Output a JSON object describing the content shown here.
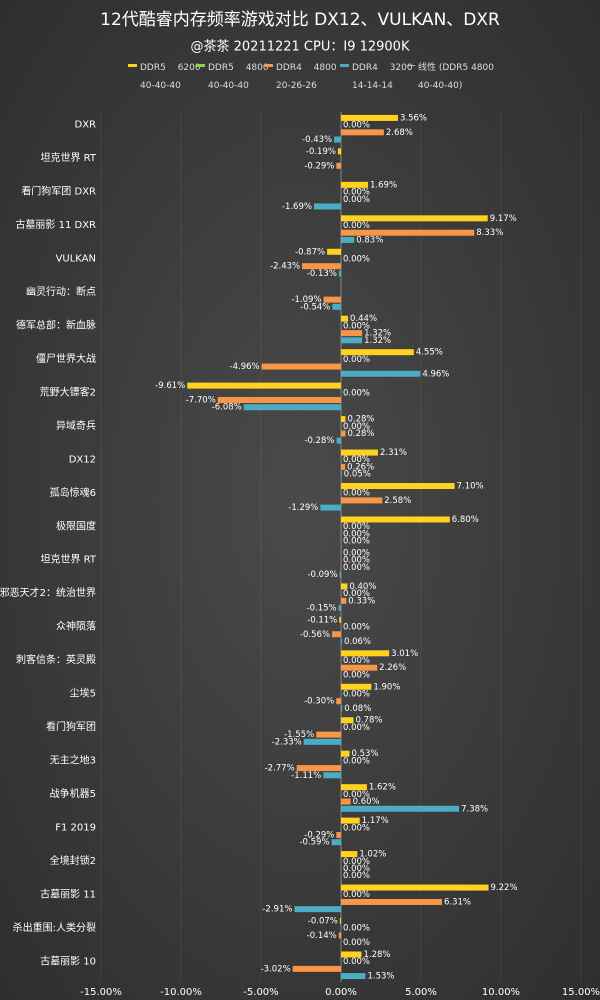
{
  "chart_data": {
    "type": "hbar",
    "title": "12代酷睿内存频率游戏对比 DX12、VULKAN、DXR",
    "subtitle": "@茶茶 20211221 CPU：I9 12900K",
    "trendline_label": "线性 (DDR5 4800 40-40-40)",
    "categories": [
      "DXR",
      "坦克世界 RT",
      "看门狗军团 DXR",
      "古墓丽影 11 DXR",
      "VULKAN",
      "幽灵行动：断点",
      "德军总部：新血脉",
      "僵尸世界大战",
      "荒野大镖客2",
      "异域奇兵",
      "DX12",
      "孤岛惊魂6",
      "极限国度",
      "坦克世界 RT",
      "邪恶天才2：统治世界",
      "众神陨落",
      "刺客信条：英灵殿",
      "尘埃5",
      "看门狗军团",
      "无主之地3",
      "战争机器5",
      "F1 2019",
      "全境封锁2",
      "古墓丽影 11",
      "杀出重围:人类分裂",
      "古墓丽影 10"
    ],
    "series": [
      {
        "name": "DDR5 6200 40-40-40",
        "color": "#ffd21f",
        "values": [
          3.56,
          -0.19,
          1.69,
          9.17,
          -0.87,
          null,
          0.44,
          4.55,
          -9.61,
          0.28,
          2.31,
          7.1,
          6.8,
          0.0,
          0.4,
          -0.11,
          3.01,
          1.9,
          0.78,
          0.53,
          1.62,
          1.17,
          1.02,
          9.22,
          -0.07,
          1.28
        ],
        "value_labels": [
          "3.56%",
          "-0.19%",
          "1.69%",
          "9.17%",
          "-0.87%",
          null,
          "0.44%",
          "4.55%",
          "-9.61%",
          "0.28%",
          "2.31%",
          "7.10%",
          "6.80%",
          "0.00%",
          "0.40%",
          "-0.11%",
          "3.01%",
          "1.90%",
          "0.78%",
          "0.53%",
          "1.62%",
          "1.17%",
          "1.02%",
          "9.22%",
          "-0.07%",
          "1.28%"
        ]
      },
      {
        "name": "DDR5 4800 40-40-40",
        "color": "#92d050",
        "values": [
          0.0,
          null,
          0.0,
          0.0,
          0.0,
          null,
          0.0,
          0.0,
          0.0,
          0.0,
          0.0,
          0.0,
          0.0,
          0.0,
          0.0,
          0.0,
          0.0,
          0.0,
          0.0,
          0.0,
          0.0,
          0.0,
          0.0,
          0.0,
          0.0,
          0.0
        ],
        "value_labels": [
          "0.00%",
          null,
          "0.00%",
          "0.00%",
          "0.00%",
          null,
          "0.00%",
          "0.00%",
          "0.00%",
          "0.00%",
          "0.00%",
          "0.00%",
          "0.00%",
          "0.00%",
          "0.00%",
          "0.00%",
          "0.00%",
          "0.00%",
          "0.00%",
          "0.00%",
          "0.00%",
          "0.00%",
          "0.00%",
          "0.00%",
          "0.00%",
          "0.00%"
        ]
      },
      {
        "name": "DDR4 4800 20-26-26",
        "color": "#f79646",
        "values": [
          2.68,
          -0.29,
          0.0,
          8.33,
          -2.43,
          -1.09,
          1.32,
          -4.96,
          -7.7,
          0.28,
          0.26,
          2.58,
          0.0,
          0.0,
          0.33,
          -0.56,
          2.26,
          -0.3,
          -1.55,
          -2.77,
          0.6,
          -0.29,
          0.0,
          6.31,
          -0.14,
          -3.02
        ],
        "value_labels": [
          "2.68%",
          "-0.29%",
          "0.00%",
          "8.33%",
          "-2.43%",
          "-1.09%",
          "1.32%",
          "-4.96%",
          "-7.70%",
          "0.28%",
          "0.26%",
          "2.58%",
          "0.00%",
          "0.00%",
          "0.33%",
          "-0.56%",
          "2.26%",
          "-0.30%",
          "-1.55%",
          "-2.77%",
          "0.60%",
          "-0.29%",
          "0.00%",
          "6.31%",
          "-0.14%",
          "-3.02%"
        ]
      },
      {
        "name": "DDR4 3200 14-14-14",
        "color": "#4bacc6",
        "values": [
          -0.43,
          null,
          -1.69,
          0.83,
          -0.13,
          -0.54,
          1.32,
          4.96,
          -6.08,
          -0.28,
          0.05,
          -1.29,
          0.0,
          -0.09,
          -0.15,
          0.06,
          0.0,
          0.08,
          -2.33,
          -1.11,
          7.38,
          -0.59,
          0.0,
          -2.91,
          0.0,
          1.53
        ],
        "value_labels": [
          "-0.43%",
          null,
          "-1.69%",
          "0.83%",
          "-0.13%",
          "-0.54%",
          "1.32%",
          "4.96%",
          "-6.08%",
          "-0.28%",
          "0.05%",
          "-1.29%",
          "0.00%",
          "-0.09%",
          "-0.15%",
          "0.06%",
          "0.00%",
          "0.08%",
          "-2.33%",
          "-1.11%",
          "7.38%",
          "-0.59%",
          "0.00%",
          "-2.91%",
          "0.00%",
          "1.53%"
        ]
      }
    ],
    "xlim": [
      -15,
      15
    ],
    "xticks": [
      {
        "value": -15,
        "label": "-15.00%"
      },
      {
        "value": -10,
        "label": "-10.00%"
      },
      {
        "value": -5,
        "label": "-5.00%"
      },
      {
        "value": 0,
        "label": "0.00%"
      },
      {
        "value": 5,
        "label": "5.00%"
      },
      {
        "value": 10,
        "label": "10.00%"
      },
      {
        "value": 15,
        "label": "15.00%"
      }
    ]
  }
}
